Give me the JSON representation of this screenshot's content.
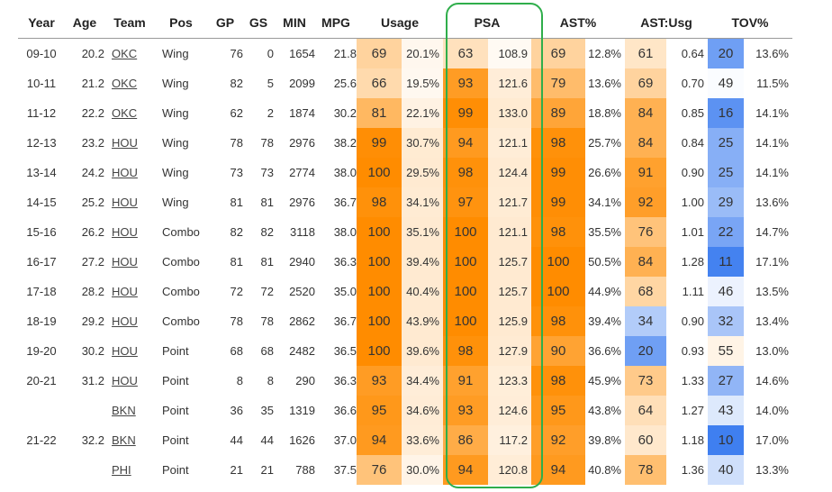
{
  "colors": {
    "highlight_border": "#2fae4b",
    "scale_orange": "#ff8c00",
    "scale_blue": "#3f7ff0",
    "scale_neutral": "#ffffff"
  },
  "headers": {
    "year": "Year",
    "age": "Age",
    "team": "Team",
    "pos": "Pos",
    "gp": "GP",
    "gs": "GS",
    "min": "MIN",
    "mpg": "MPG",
    "usage": "Usage",
    "psa": "PSA",
    "ast": "AST%",
    "astusg": "AST:Usg",
    "tov": "TOV%"
  },
  "rows": [
    {
      "year": "09-10",
      "age": "20.2",
      "team": "OKC",
      "pos": "Wing",
      "gp": "76",
      "gs": "0",
      "min": "1654",
      "mpg": "21.8",
      "usage_pct": "69",
      "usage": "20.1%",
      "psa_pct": "63",
      "psa": "108.9",
      "ast_pct": "69",
      "ast": "12.8%",
      "astusg_pct": "61",
      "astusg": "0.64",
      "tov_pct": "20",
      "tov": "13.6%"
    },
    {
      "year": "10-11",
      "age": "21.2",
      "team": "OKC",
      "pos": "Wing",
      "gp": "82",
      "gs": "5",
      "min": "2099",
      "mpg": "25.6",
      "usage_pct": "66",
      "usage": "19.5%",
      "psa_pct": "93",
      "psa": "121.6",
      "ast_pct": "79",
      "ast": "13.6%",
      "astusg_pct": "69",
      "astusg": "0.70",
      "tov_pct": "49",
      "tov": "11.5%"
    },
    {
      "year": "11-12",
      "age": "22.2",
      "team": "OKC",
      "pos": "Wing",
      "gp": "62",
      "gs": "2",
      "min": "1874",
      "mpg": "30.2",
      "usage_pct": "81",
      "usage": "22.1%",
      "psa_pct": "99",
      "psa": "133.0",
      "ast_pct": "89",
      "ast": "18.8%",
      "astusg_pct": "84",
      "astusg": "0.85",
      "tov_pct": "16",
      "tov": "14.1%"
    },
    {
      "year": "12-13",
      "age": "23.2",
      "team": "HOU",
      "pos": "Wing",
      "gp": "78",
      "gs": "78",
      "min": "2976",
      "mpg": "38.2",
      "usage_pct": "99",
      "usage": "30.7%",
      "psa_pct": "94",
      "psa": "121.1",
      "ast_pct": "98",
      "ast": "25.7%",
      "astusg_pct": "84",
      "astusg": "0.84",
      "tov_pct": "25",
      "tov": "14.1%"
    },
    {
      "year": "13-14",
      "age": "24.2",
      "team": "HOU",
      "pos": "Wing",
      "gp": "73",
      "gs": "73",
      "min": "2774",
      "mpg": "38.0",
      "usage_pct": "100",
      "usage": "29.5%",
      "psa_pct": "98",
      "psa": "124.4",
      "ast_pct": "99",
      "ast": "26.6%",
      "astusg_pct": "91",
      "astusg": "0.90",
      "tov_pct": "25",
      "tov": "14.1%"
    },
    {
      "year": "14-15",
      "age": "25.2",
      "team": "HOU",
      "pos": "Wing",
      "gp": "81",
      "gs": "81",
      "min": "2976",
      "mpg": "36.7",
      "usage_pct": "98",
      "usage": "34.1%",
      "psa_pct": "97",
      "psa": "121.7",
      "ast_pct": "99",
      "ast": "34.1%",
      "astusg_pct": "92",
      "astusg": "1.00",
      "tov_pct": "29",
      "tov": "13.6%"
    },
    {
      "year": "15-16",
      "age": "26.2",
      "team": "HOU",
      "pos": "Combo",
      "gp": "82",
      "gs": "82",
      "min": "3118",
      "mpg": "38.0",
      "usage_pct": "100",
      "usage": "35.1%",
      "psa_pct": "100",
      "psa": "121.1",
      "ast_pct": "98",
      "ast": "35.5%",
      "astusg_pct": "76",
      "astusg": "1.01",
      "tov_pct": "22",
      "tov": "14.7%"
    },
    {
      "year": "16-17",
      "age": "27.2",
      "team": "HOU",
      "pos": "Combo",
      "gp": "81",
      "gs": "81",
      "min": "2940",
      "mpg": "36.3",
      "usage_pct": "100",
      "usage": "39.4%",
      "psa_pct": "100",
      "psa": "125.7",
      "ast_pct": "100",
      "ast": "50.5%",
      "astusg_pct": "84",
      "astusg": "1.28",
      "tov_pct": "11",
      "tov": "17.1%"
    },
    {
      "year": "17-18",
      "age": "28.2",
      "team": "HOU",
      "pos": "Combo",
      "gp": "72",
      "gs": "72",
      "min": "2520",
      "mpg": "35.0",
      "usage_pct": "100",
      "usage": "40.4%",
      "psa_pct": "100",
      "psa": "125.7",
      "ast_pct": "100",
      "ast": "44.9%",
      "astusg_pct": "68",
      "astusg": "1.11",
      "tov_pct": "46",
      "tov": "13.5%"
    },
    {
      "year": "18-19",
      "age": "29.2",
      "team": "HOU",
      "pos": "Combo",
      "gp": "78",
      "gs": "78",
      "min": "2862",
      "mpg": "36.7",
      "usage_pct": "100",
      "usage": "43.9%",
      "psa_pct": "100",
      "psa": "125.9",
      "ast_pct": "98",
      "ast": "39.4%",
      "astusg_pct": "34",
      "astusg": "0.90",
      "tov_pct": "32",
      "tov": "13.4%"
    },
    {
      "year": "19-20",
      "age": "30.2",
      "team": "HOU",
      "pos": "Point",
      "gp": "68",
      "gs": "68",
      "min": "2482",
      "mpg": "36.5",
      "usage_pct": "100",
      "usage": "39.6%",
      "psa_pct": "98",
      "psa": "127.9",
      "ast_pct": "90",
      "ast": "36.6%",
      "astusg_pct": "20",
      "astusg": "0.93",
      "tov_pct": "55",
      "tov": "13.0%"
    },
    {
      "year": "20-21",
      "age": "31.2",
      "team": "HOU",
      "pos": "Point",
      "gp": "8",
      "gs": "8",
      "min": "290",
      "mpg": "36.3",
      "usage_pct": "93",
      "usage": "34.4%",
      "psa_pct": "91",
      "psa": "123.3",
      "ast_pct": "98",
      "ast": "45.9%",
      "astusg_pct": "73",
      "astusg": "1.33",
      "tov_pct": "27",
      "tov": "14.6%"
    },
    {
      "year": "",
      "age": "",
      "team": "BKN",
      "pos": "Point",
      "gp": "36",
      "gs": "35",
      "min": "1319",
      "mpg": "36.6",
      "usage_pct": "95",
      "usage": "34.6%",
      "psa_pct": "93",
      "psa": "124.6",
      "ast_pct": "95",
      "ast": "43.8%",
      "astusg_pct": "64",
      "astusg": "1.27",
      "tov_pct": "43",
      "tov": "14.0%"
    },
    {
      "year": "21-22",
      "age": "32.2",
      "team": "BKN",
      "pos": "Point",
      "gp": "44",
      "gs": "44",
      "min": "1626",
      "mpg": "37.0",
      "usage_pct": "94",
      "usage": "33.6%",
      "psa_pct": "86",
      "psa": "117.2",
      "ast_pct": "92",
      "ast": "39.8%",
      "astusg_pct": "60",
      "astusg": "1.18",
      "tov_pct": "10",
      "tov": "17.0%"
    },
    {
      "year": "",
      "age": "",
      "team": "PHI",
      "pos": "Point",
      "gp": "21",
      "gs": "21",
      "min": "788",
      "mpg": "37.5",
      "usage_pct": "76",
      "usage": "30.0%",
      "psa_pct": "94",
      "psa": "120.8",
      "ast_pct": "94",
      "ast": "40.8%",
      "astusg_pct": "78",
      "astusg": "1.36",
      "tov_pct": "40",
      "tov": "13.3%"
    }
  ]
}
